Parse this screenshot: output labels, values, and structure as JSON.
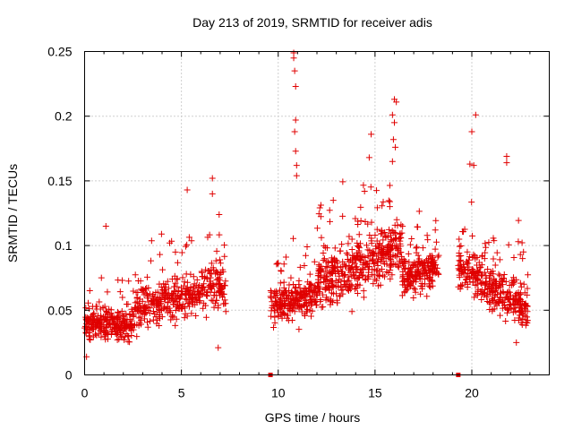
{
  "chart_data": {
    "type": "scatter",
    "title": "Day 213 of 2019, SRMTID for receiver adis",
    "xlabel": "GPS time / hours",
    "ylabel": "SRMTID / TECUs",
    "xlim": [
      0,
      24
    ],
    "ylim": [
      0,
      0.25
    ],
    "x_ticks": [
      0,
      5,
      10,
      15,
      20
    ],
    "x_tick_labels": [
      "0",
      "5",
      "10",
      "15",
      "20"
    ],
    "y_ticks": [
      0,
      0.05,
      0.1,
      0.15,
      0.2,
      0.25
    ],
    "y_tick_labels": [
      "0",
      "0.05",
      "0.1",
      "0.15",
      "0.2",
      "0.25"
    ],
    "grid": true,
    "marker": "+",
    "marker_color": "#e00000",
    "gap_markers": [
      {
        "x": 9.6,
        "y": 0
      },
      {
        "x": 19.3,
        "y": 0
      }
    ],
    "series": [
      {
        "name": "SRMTID",
        "segments": [
          {
            "t0": 0.0,
            "t1": 2.5,
            "base0": 0.038,
            "base1": 0.04,
            "spread": 0.016,
            "n": 260
          },
          {
            "t0": 2.5,
            "t1": 7.3,
            "base0": 0.05,
            "base1": 0.07,
            "spread": 0.022,
            "n": 420
          },
          {
            "t0": 9.6,
            "t1": 12.0,
            "base0": 0.055,
            "base1": 0.06,
            "spread": 0.02,
            "n": 230
          },
          {
            "t0": 12.0,
            "t1": 16.4,
            "base0": 0.07,
            "base1": 0.1,
            "spread": 0.028,
            "n": 460
          },
          {
            "t0": 16.4,
            "t1": 18.3,
            "base0": 0.075,
            "base1": 0.085,
            "spread": 0.02,
            "n": 200
          },
          {
            "t0": 19.3,
            "t1": 22.9,
            "base0": 0.085,
            "base1": 0.05,
            "spread": 0.022,
            "n": 340
          }
        ],
        "notable_points": [
          {
            "x": 10.8,
            "y": 0.249
          },
          {
            "x": 10.8,
            "y": 0.245
          },
          {
            "x": 10.85,
            "y": 0.235
          },
          {
            "x": 10.9,
            "y": 0.223
          },
          {
            "x": 10.9,
            "y": 0.197
          },
          {
            "x": 10.85,
            "y": 0.188
          },
          {
            "x": 10.9,
            "y": 0.173
          },
          {
            "x": 10.95,
            "y": 0.162
          },
          {
            "x": 10.95,
            "y": 0.154
          },
          {
            "x": 16.0,
            "y": 0.213
          },
          {
            "x": 16.1,
            "y": 0.211
          },
          {
            "x": 15.9,
            "y": 0.201
          },
          {
            "x": 16.0,
            "y": 0.195
          },
          {
            "x": 15.95,
            "y": 0.182
          },
          {
            "x": 16.05,
            "y": 0.176
          },
          {
            "x": 15.9,
            "y": 0.165
          },
          {
            "x": 14.8,
            "y": 0.186
          },
          {
            "x": 14.7,
            "y": 0.168
          },
          {
            "x": 20.2,
            "y": 0.201
          },
          {
            "x": 20.0,
            "y": 0.188
          },
          {
            "x": 19.9,
            "y": 0.163
          },
          {
            "x": 20.1,
            "y": 0.162
          },
          {
            "x": 21.8,
            "y": 0.169
          },
          {
            "x": 21.8,
            "y": 0.164
          },
          {
            "x": 6.6,
            "y": 0.152
          },
          {
            "x": 5.3,
            "y": 0.143
          },
          {
            "x": 6.6,
            "y": 0.14
          },
          {
            "x": 1.1,
            "y": 0.115
          },
          {
            "x": 0.1,
            "y": 0.014
          },
          {
            "x": 6.9,
            "y": 0.021
          },
          {
            "x": 22.4,
            "y": 0.103
          },
          {
            "x": 22.3,
            "y": 0.025
          }
        ]
      }
    ]
  }
}
